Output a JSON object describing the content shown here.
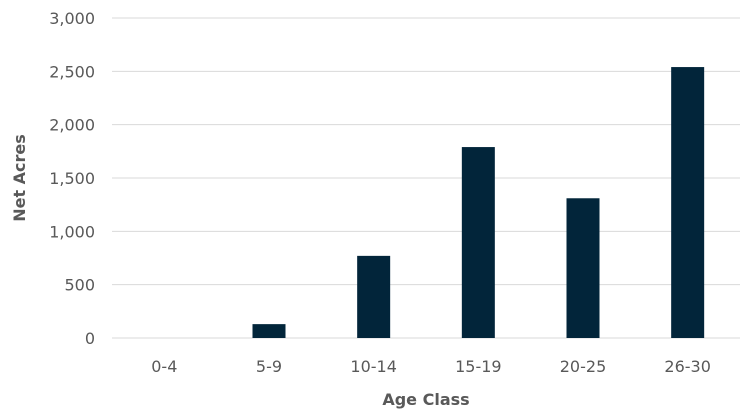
{
  "chart_data": {
    "type": "bar",
    "title": "",
    "xlabel": "Age Class",
    "ylabel": "Net Acres",
    "categories": [
      "0-4",
      "5-9",
      "10-14",
      "15-19",
      "20-25",
      "26-30"
    ],
    "values": [
      0,
      130,
      770,
      1790,
      1310,
      2540
    ],
    "ylim": [
      0,
      3000
    ],
    "yticks": [
      0,
      500,
      1000,
      1500,
      2000,
      2500,
      3000
    ],
    "ytick_labels": [
      "0",
      "500",
      "1,000",
      "1,500",
      "2,000",
      "2,500",
      "3,000"
    ],
    "grid": true,
    "legend": "none",
    "colors": {
      "bar": "#02253a",
      "grid": "#d9d9d9",
      "tick_text": "#595959",
      "axis_label": "#595959"
    }
  }
}
